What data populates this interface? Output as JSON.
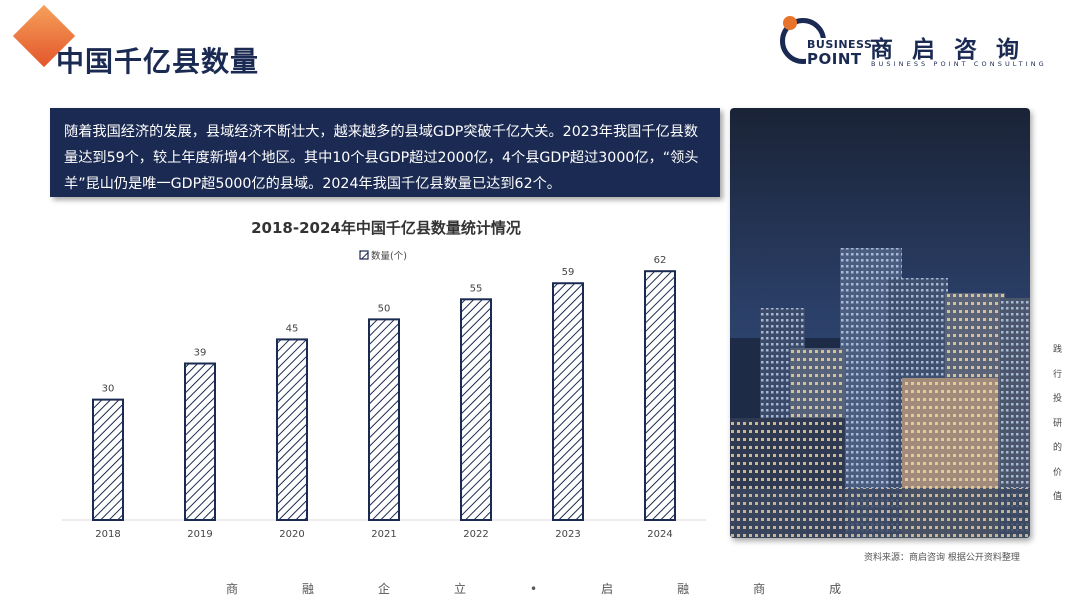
{
  "header": {
    "title": "中国千亿县数量"
  },
  "logo": {
    "line1": "BUSINESS",
    "line2": "POINT",
    "cn": "商启咨询",
    "en": "BUSINESS POINT CONSULTING"
  },
  "intro_text": "随着我国经济的发展，县域经济不断壮大，越来越多的县域GDP突破千亿大关。2023年我国千亿县数量达到59个，较上年度新增4个地区。其中10个县GDP超过2000亿，4个县GDP超过3000亿，“领头羊”昆山仍是唯一GDP超5000亿的县域。2024年我国千亿县数量已达到62个。",
  "chart_data": {
    "type": "bar",
    "title": "2018-2024年中国千亿县数量统计情况",
    "categories": [
      "2018",
      "2019",
      "2020",
      "2021",
      "2022",
      "2023",
      "2024"
    ],
    "series": [
      {
        "name": "数量(个)",
        "values": [
          30,
          39,
          45,
          50,
          55,
          59,
          62
        ]
      }
    ],
    "ylim": [
      0,
      70
    ],
    "grid": false,
    "legend_position": "top-center",
    "data_labels": true,
    "colors": {
      "bar_stroke": "#1b2a52",
      "hatch": "#1b2a52",
      "bar_fill": "#ffffff"
    }
  },
  "source": "资料来源：商启咨询 根据公开资料整理",
  "side_slogan": [
    "践",
    "行",
    "投",
    "研",
    "的",
    "价",
    "值"
  ],
  "footer_slogan": "商融企立•启融商成",
  "colors": {
    "primary": "#1b2a52",
    "accent": "#e8742c"
  }
}
